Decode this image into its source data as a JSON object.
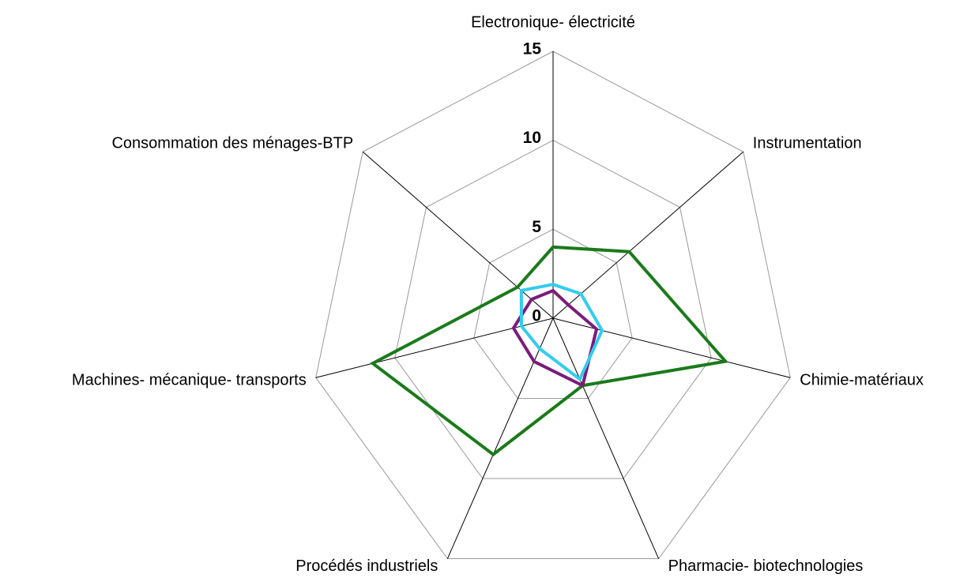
{
  "chart_data": {
    "type": "radar",
    "categories": [
      "Electronique- électricité",
      "Instrumentation",
      "Chimie-matériaux",
      "Pharmacie- biotechnologies",
      "Procédés industriels",
      "Machines- mécanique- transports",
      "Consommation des ménages-BTP"
    ],
    "series": [
      {
        "color": "#1a7a1a",
        "values": [
          4.0,
          6.0,
          10.9,
          4.2,
          8.5,
          11.4,
          2.8
        ]
      },
      {
        "color": "#7b1c7b",
        "values": [
          1.55,
          1.2,
          2.75,
          4.2,
          2.7,
          2.5,
          1.7
        ]
      },
      {
        "color": "#33ccee",
        "values": [
          1.9,
          2.2,
          3.1,
          3.8,
          1.9,
          2.0,
          2.5
        ]
      }
    ],
    "ylim": [
      0,
      15
    ],
    "yticks": [
      0,
      5,
      10,
      15
    ],
    "grid": true
  }
}
